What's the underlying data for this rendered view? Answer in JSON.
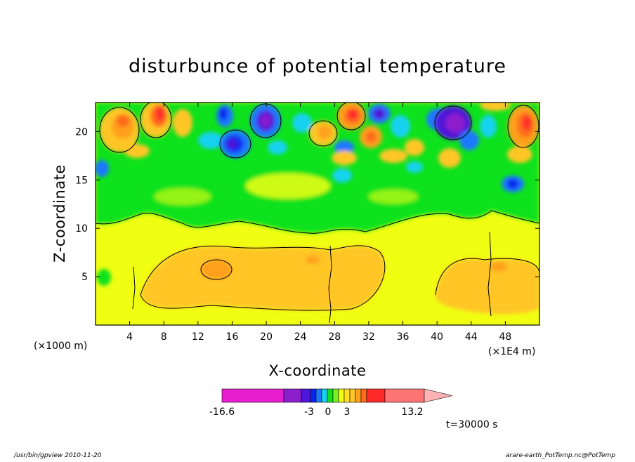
{
  "chart_data": {
    "type": "heatmap",
    "title": "disturbunce of potential temperature",
    "xlabel": "X-coordinate",
    "ylabel": "Z-coordinate",
    "x_unit_label": "(×1000 m)",
    "x_scale_label": "(×1E4 m)",
    "xlim": [
      0,
      52
    ],
    "ylim": [
      0,
      23
    ],
    "x_ticks": [
      4,
      8,
      12,
      16,
      20,
      24,
      28,
      32,
      36,
      40,
      44,
      48
    ],
    "y_ticks": [
      5,
      10,
      15,
      20
    ],
    "time_label": "t=30000 s",
    "colorbar": {
      "tick_labels": [
        "-16.6",
        "-3",
        "0",
        "3",
        "13.2"
      ],
      "tick_values": [
        -16.6,
        -3,
        0,
        3,
        13.2
      ],
      "colors": [
        "#e61ecf",
        "#8c1fcc",
        "#4f16d9",
        "#0a25ee",
        "#1e78ff",
        "#18d2f0",
        "#10e21b",
        "#78ef22",
        "#f0ff12",
        "#ffe11f",
        "#ffc627",
        "#ffa01e",
        "#ff6a1d",
        "#ff2a2a",
        "#ff7575",
        "#ffb3b3"
      ]
    }
  },
  "footer": {
    "left": "/usr/bin/gpview   2010-11-20",
    "right": "arare-earth_PotTemp.nc@PotTemp"
  }
}
